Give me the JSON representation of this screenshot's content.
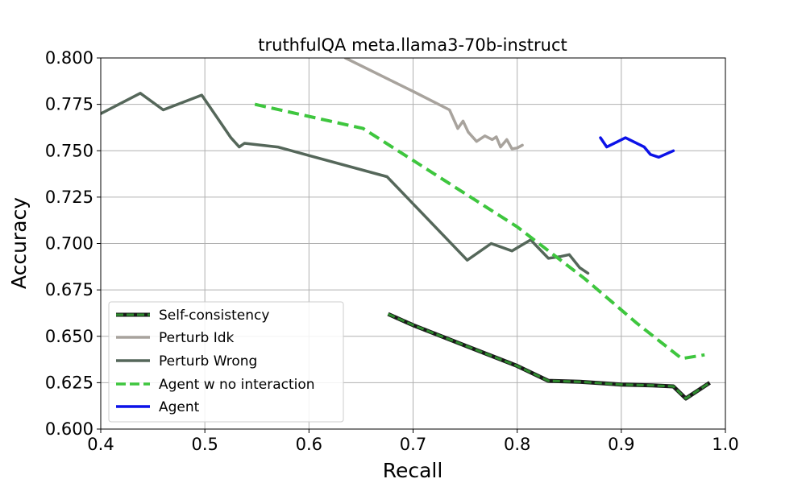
{
  "chart_data": {
    "type": "line",
    "title": "truthfulQA meta.llama3-70b-instruct",
    "xlabel": "Recall",
    "ylabel": "Accuracy",
    "xlim": [
      0.4,
      1.0
    ],
    "ylim": [
      0.6,
      0.8
    ],
    "grid": true,
    "legend_position": "lower-left",
    "xticks": [
      "0.4",
      "0.5",
      "0.6",
      "0.7",
      "0.8",
      "0.9",
      "1.0"
    ],
    "yticks": [
      "0.600",
      "0.625",
      "0.650",
      "0.675",
      "0.700",
      "0.725",
      "0.750",
      "0.775",
      "0.800"
    ],
    "series": [
      {
        "name": "Self-consistency",
        "color": "#2e8b2e",
        "style": "dashed-outlined",
        "x": [
          0.676,
          0.7,
          0.75,
          0.8,
          0.83,
          0.86,
          0.9,
          0.93,
          0.95,
          0.962,
          0.985
        ],
        "y": [
          0.662,
          0.656,
          0.645,
          0.634,
          0.626,
          0.6255,
          0.624,
          0.6235,
          0.623,
          0.6165,
          0.625
        ]
      },
      {
        "name": "Perturb Idk",
        "color": "#a8a39d",
        "style": "solid",
        "x": [
          0.635,
          0.7,
          0.735,
          0.743,
          0.748,
          0.753,
          0.761,
          0.769,
          0.776,
          0.78,
          0.784,
          0.79,
          0.795,
          0.8,
          0.805
        ],
        "y": [
          0.8,
          0.782,
          0.772,
          0.762,
          0.766,
          0.76,
          0.755,
          0.758,
          0.756,
          0.7575,
          0.752,
          0.756,
          0.751,
          0.7515,
          0.753
        ]
      },
      {
        "name": "Perturb Wrong",
        "color": "#55675a",
        "style": "solid",
        "x": [
          0.4,
          0.438,
          0.46,
          0.497,
          0.525,
          0.533,
          0.538,
          0.57,
          0.675,
          0.752,
          0.775,
          0.795,
          0.813,
          0.818,
          0.83,
          0.842,
          0.85,
          0.86,
          0.868
        ],
        "y": [
          0.77,
          0.781,
          0.772,
          0.78,
          0.757,
          0.752,
          0.754,
          0.752,
          0.736,
          0.691,
          0.7,
          0.696,
          0.702,
          0.699,
          0.692,
          0.693,
          0.694,
          0.687,
          0.684
        ]
      },
      {
        "name": "Agent w no interaction",
        "color": "#3ec63e",
        "style": "dashed",
        "x": [
          0.548,
          0.652,
          0.8,
          0.865,
          0.915,
          0.958,
          0.98
        ],
        "y": [
          0.775,
          0.762,
          0.709,
          0.681,
          0.657,
          0.638,
          0.64
        ]
      },
      {
        "name": "Agent",
        "color": "#0c12e8",
        "style": "solid",
        "x": [
          0.88,
          0.886,
          0.904,
          0.922,
          0.928,
          0.936,
          0.95
        ],
        "y": [
          0.757,
          0.752,
          0.757,
          0.752,
          0.748,
          0.7465,
          0.75
        ]
      }
    ]
  }
}
